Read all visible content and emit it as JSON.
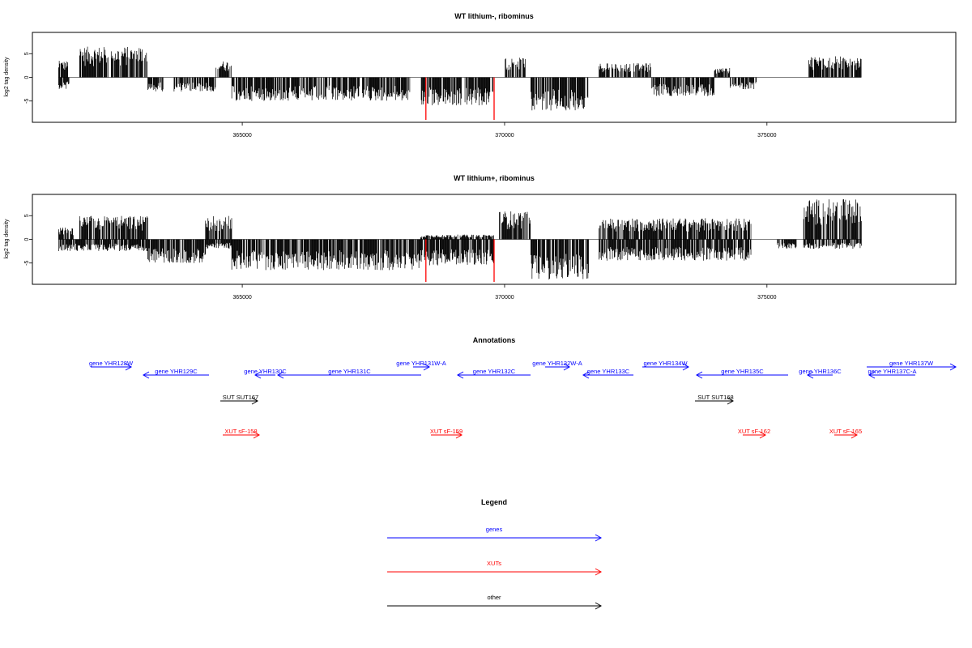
{
  "colors": {
    "genes": "#0000ff",
    "XUTs": "#ff0000",
    "other": "#000000",
    "signal": "#000000",
    "highlight": "#ff0000",
    "axis": "#000000"
  },
  "chart_data": [
    {
      "type": "bar",
      "title": "WT lithium-, ribominus",
      "xlabel": "",
      "ylabel": "log2 tag density",
      "xlim": [
        361000,
        378600
      ],
      "ylim": [
        -9.5,
        9.5
      ],
      "xticks": [
        365000,
        370000,
        375000
      ],
      "xtick_labels": [
        "365000",
        "370000",
        "375000"
      ],
      "yticks": [
        -5,
        0,
        5
      ],
      "ytick_labels": [
        "-5",
        "0",
        "5"
      ],
      "highlight_x": [
        368500,
        369800
      ],
      "highlight_y": -9,
      "segments": [
        {
          "from": 361500,
          "to": 361700,
          "sign": 1,
          "amp": 3.5
        },
        {
          "from": 361500,
          "to": 361700,
          "sign": -1,
          "amp": 2.5
        },
        {
          "from": 361900,
          "to": 363200,
          "sign": 1,
          "amp": 6.5
        },
        {
          "from": 363200,
          "to": 363500,
          "sign": -1,
          "amp": 3.0
        },
        {
          "from": 363700,
          "to": 364500,
          "sign": -1,
          "amp": 3.0
        },
        {
          "from": 364500,
          "to": 364800,
          "sign": 1,
          "amp": 3.5
        },
        {
          "from": 364800,
          "to": 368200,
          "sign": -1,
          "amp": 5.0
        },
        {
          "from": 368400,
          "to": 369800,
          "sign": -1,
          "amp": 6.0
        },
        {
          "from": 370000,
          "to": 370400,
          "sign": 1,
          "amp": 4.2
        },
        {
          "from": 370500,
          "to": 371600,
          "sign": -1,
          "amp": 7.0
        },
        {
          "from": 371800,
          "to": 372800,
          "sign": 1,
          "amp": 3.0
        },
        {
          "from": 372800,
          "to": 374000,
          "sign": -1,
          "amp": 4.0
        },
        {
          "from": 374000,
          "to": 374300,
          "sign": 1,
          "amp": 2.0
        },
        {
          "from": 374300,
          "to": 374800,
          "sign": -1,
          "amp": 2.5
        },
        {
          "from": 375800,
          "to": 376800,
          "sign": 1,
          "amp": 4.5
        }
      ]
    },
    {
      "type": "bar",
      "title": "WT lithium+, ribominus",
      "xlabel": "",
      "ylabel": "log2 tag density",
      "xlim": [
        361000,
        378600
      ],
      "ylim": [
        -9.5,
        9.5
      ],
      "xticks": [
        365000,
        370000,
        375000
      ],
      "xtick_labels": [
        "365000",
        "370000",
        "375000"
      ],
      "yticks": [
        -5,
        0,
        5
      ],
      "ytick_labels": [
        "-5",
        "0",
        "5"
      ],
      "highlight_x": [
        368500,
        369800
      ],
      "highlight_y": -9,
      "segments": [
        {
          "from": 361500,
          "to": 361800,
          "sign": 1,
          "amp": 2.5
        },
        {
          "from": 361500,
          "to": 363200,
          "sign": -1,
          "amp": 2.5
        },
        {
          "from": 361900,
          "to": 363200,
          "sign": 1,
          "amp": 5.0
        },
        {
          "from": 363200,
          "to": 364300,
          "sign": -1,
          "amp": 5.0
        },
        {
          "from": 364300,
          "to": 364800,
          "sign": 1,
          "amp": 5.0
        },
        {
          "from": 364300,
          "to": 364800,
          "sign": -1,
          "amp": 2.0
        },
        {
          "from": 364800,
          "to": 368400,
          "sign": -1,
          "amp": 6.5
        },
        {
          "from": 368400,
          "to": 369800,
          "sign": -1,
          "amp": 5.5
        },
        {
          "from": 368400,
          "to": 369800,
          "sign": 1,
          "amp": 1.0
        },
        {
          "from": 369900,
          "to": 370500,
          "sign": 1,
          "amp": 6.0
        },
        {
          "from": 370500,
          "to": 371600,
          "sign": -1,
          "amp": 8.5
        },
        {
          "from": 371800,
          "to": 374700,
          "sign": 1,
          "amp": 4.5
        },
        {
          "from": 371800,
          "to": 374700,
          "sign": -1,
          "amp": 4.5
        },
        {
          "from": 375200,
          "to": 375600,
          "sign": -1,
          "amp": 2.0
        },
        {
          "from": 375700,
          "to": 376800,
          "sign": 1,
          "amp": 8.5
        },
        {
          "from": 375700,
          "to": 376800,
          "sign": -1,
          "amp": 2.0
        }
      ]
    }
  ],
  "annotations": {
    "title": "Annotations",
    "genes": [
      {
        "label": "gene YHR128W",
        "x1": 112,
        "x2": 162,
        "dir": "right",
        "row": 0
      },
      {
        "label": "gene YHR129C",
        "x1": 177,
        "x2": 258,
        "dir": "left",
        "row": 1
      },
      {
        "label": "gene YHR130C",
        "x1": 315,
        "x2": 340,
        "dir": "left",
        "row": 1
      },
      {
        "label": "gene YHR131C",
        "x1": 343,
        "x2": 520,
        "dir": "left",
        "row": 1
      },
      {
        "label": "gene YHR131W-A",
        "x1": 510,
        "x2": 530,
        "dir": "right",
        "row": 0
      },
      {
        "label": "gene YHR132C",
        "x1": 565,
        "x2": 655,
        "dir": "left",
        "row": 1
      },
      {
        "label": "gene YHR132W-A",
        "x1": 673,
        "x2": 703,
        "dir": "right",
        "row": 0
      },
      {
        "label": "gene YHR133C",
        "x1": 720,
        "x2": 782,
        "dir": "left",
        "row": 1
      },
      {
        "label": "gene YHR134W",
        "x1": 793,
        "x2": 850,
        "dir": "right",
        "row": 0
      },
      {
        "label": "gene YHR135C",
        "x1": 860,
        "x2": 973,
        "dir": "left",
        "row": 1
      },
      {
        "label": "gene YHR136C",
        "x1": 997,
        "x2": 1028,
        "dir": "left",
        "row": 1
      },
      {
        "label": "gene YHR137W",
        "x1": 1070,
        "x2": 1180,
        "dir": "right",
        "row": 0
      },
      {
        "label": "gene YHR137C-A",
        "x1": 1073,
        "x2": 1130,
        "dir": "left",
        "row": 1
      }
    ],
    "other": [
      {
        "label": "SUT SUT167",
        "x1": 272,
        "x2": 318,
        "dir": "right"
      },
      {
        "label": "SUT SUT168",
        "x1": 858,
        "x2": 905,
        "dir": "right"
      }
    ],
    "xuts": [
      {
        "label": "XUT sF-158",
        "x1": 275,
        "x2": 320,
        "dir": "right"
      },
      {
        "label": "XUT sF-159",
        "x1": 532,
        "x2": 570,
        "dir": "right"
      },
      {
        "label": "XUT sF-162",
        "x1": 917,
        "x2": 945,
        "dir": "right"
      },
      {
        "label": "XUT sF-165",
        "x1": 1030,
        "x2": 1058,
        "dir": "right"
      }
    ]
  },
  "legend": {
    "title": "Legend",
    "items": [
      {
        "key": "genes",
        "label": "genes"
      },
      {
        "key": "XUTs",
        "label": "XUTs"
      },
      {
        "key": "other",
        "label": "other"
      }
    ]
  }
}
